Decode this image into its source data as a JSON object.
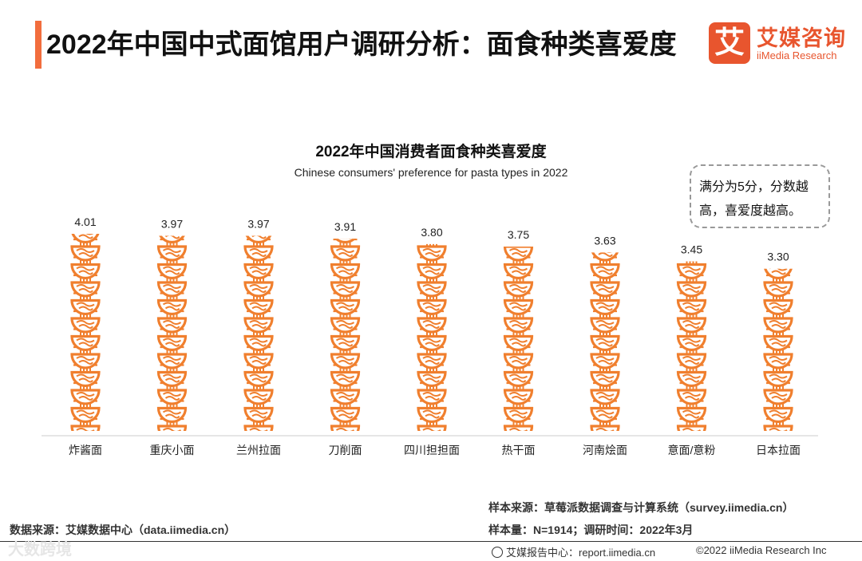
{
  "header": {
    "title": "2022年中国中式面馆用户调研分析：面食种类喜爱度",
    "logo_mark": "艾",
    "logo_cn": "艾媒咨询",
    "logo_en": "iiMedia Research"
  },
  "note": "满分为5分，分数越高，喜爱度越高。",
  "chart_data": {
    "type": "bar",
    "title": "2022年中国消费者面食种类喜爱度",
    "subtitle": "Chinese consumers' preference for pasta types in 2022",
    "categories": [
      "炸酱面",
      "重庆小面",
      "兰州拉面",
      "刀削面",
      "四川担担面",
      "热干面",
      "河南烩面",
      "意面/意粉",
      "日本拉面"
    ],
    "values": [
      4.01,
      3.97,
      3.97,
      3.91,
      3.8,
      3.75,
      3.63,
      3.45,
      3.3
    ],
    "value_labels": [
      "4.01",
      "3.97",
      "3.97",
      "3.91",
      "3.80",
      "3.75",
      "3.63",
      "3.45",
      "3.30"
    ],
    "ylim": [
      0,
      4.5
    ],
    "grid": false,
    "bar_style": "stacked noodle-bowl icons",
    "bar_color": "#f07f2e"
  },
  "footer": {
    "data_source": "数据来源：艾媒数据中心（data.iimedia.cn）",
    "sample_source": "样本来源：草莓派数据调查与计算系统（survey.iimedia.cn）",
    "sample_size": "样本量：N=1914；调研时间：2022年3月",
    "report_center": "艾媒报告中心：report.iimedia.cn",
    "copyright": "©2022 iiMedia Research Inc",
    "watermark": "大数跨境"
  }
}
